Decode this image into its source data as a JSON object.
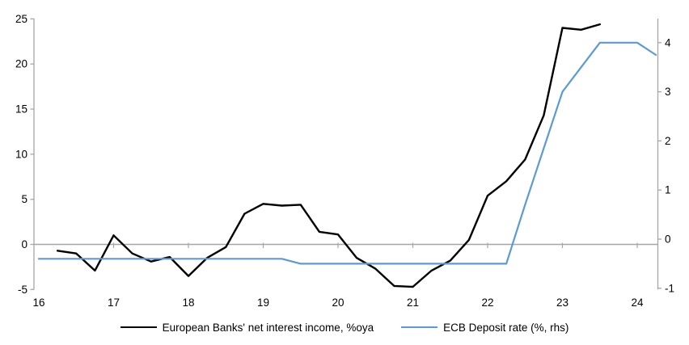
{
  "chart_data": {
    "type": "line",
    "title": "",
    "x_axis": {
      "ticks": [
        16,
        17,
        18,
        19,
        20,
        21,
        22,
        23,
        24
      ],
      "labels": [
        "16",
        "17",
        "18",
        "19",
        "20",
        "21",
        "22",
        "23",
        "24"
      ],
      "range": [
        16,
        24.45
      ]
    },
    "left_axis": {
      "ticks": [
        -5,
        0,
        5,
        10,
        15,
        20,
        25
      ],
      "range": [
        -5,
        25
      ],
      "side": "left"
    },
    "right_axis": {
      "ticks": [
        -1,
        0,
        1,
        2,
        3,
        4
      ],
      "range": [
        -1.05,
        4.5
      ],
      "side": "right"
    },
    "zero_line": true,
    "grid": "off",
    "legend_position": "bottom",
    "series": [
      {
        "name": "European Banks' net interest income, %oya",
        "axis": "left",
        "color": "#000000",
        "x": [
          16.25,
          16.5,
          16.75,
          17.0,
          17.25,
          17.5,
          17.75,
          18.0,
          18.25,
          18.5,
          18.75,
          19.0,
          19.25,
          19.5,
          19.75,
          20.0,
          20.25,
          20.5,
          20.75,
          21.0,
          21.25,
          21.5,
          21.75,
          22.0,
          22.25,
          22.5,
          22.75,
          23.0,
          23.25,
          23.5
        ],
        "values": [
          -0.7,
          -1.0,
          -2.9,
          1.0,
          -1.0,
          -1.9,
          -1.4,
          -3.5,
          -1.5,
          -0.3,
          3.4,
          4.5,
          4.3,
          4.4,
          1.4,
          1.1,
          -1.5,
          -2.7,
          -4.6,
          -4.7,
          -2.9,
          -1.8,
          0.5,
          5.4,
          7.0,
          9.4,
          14.3,
          24.0,
          23.8,
          24.4
        ]
      },
      {
        "name": "ECB Deposit rate (%, rhs)",
        "axis": "right",
        "color": "#5b9bd5",
        "x": [
          16.0,
          16.25,
          16.5,
          16.75,
          17.0,
          17.25,
          17.5,
          17.75,
          18.0,
          18.25,
          18.5,
          18.75,
          19.0,
          19.25,
          19.5,
          19.75,
          20.0,
          20.25,
          20.5,
          20.75,
          21.0,
          21.25,
          21.5,
          21.75,
          22.0,
          22.25,
          22.5,
          22.75,
          23.0,
          23.25,
          23.5,
          23.75,
          24.0,
          24.25
        ],
        "values": [
          -0.4,
          -0.4,
          -0.4,
          -0.4,
          -0.4,
          -0.4,
          -0.4,
          -0.4,
          -0.4,
          -0.4,
          -0.4,
          -0.4,
          -0.4,
          -0.4,
          -0.5,
          -0.5,
          -0.5,
          -0.5,
          -0.5,
          -0.5,
          -0.5,
          -0.5,
          -0.5,
          -0.5,
          -0.5,
          -0.5,
          0.7,
          1.85,
          3.0,
          3.5,
          4.0,
          4.0,
          4.0,
          3.75
        ]
      }
    ],
    "colors": {
      "axis": "#a6a6a6",
      "text": "#000000",
      "nii_line": "#000000",
      "ecb_line": "#5b9bd5"
    }
  }
}
